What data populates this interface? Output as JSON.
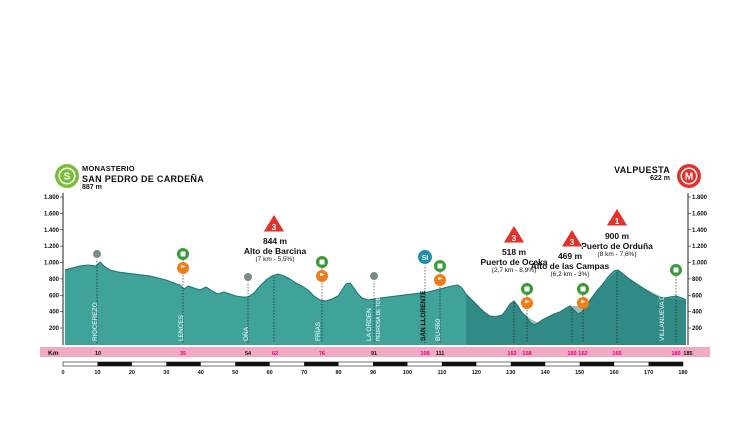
{
  "start": {
    "badge": "S",
    "line1": "MONASTERIO",
    "line2": "SAN PEDRO DE CARDEÑA",
    "alt": "887 m",
    "color": "#7bbd3a"
  },
  "finish": {
    "badge": "M",
    "line1": "VALPUESTA",
    "alt": "622 m",
    "color": "#e3322b"
  },
  "y_ticks": [
    "1.800",
    "1.600",
    "1.400",
    "1.200",
    "1.000",
    "800",
    "600",
    "400",
    "200"
  ],
  "km_label": "Km",
  "km_markers": [
    {
      "km": 10,
      "label": "10",
      "type": "plain"
    },
    {
      "km": 35,
      "label": "35",
      "type": "sprint"
    },
    {
      "km": 54,
      "label": "54",
      "type": "plain"
    },
    {
      "km": 62,
      "label": "62",
      "type": "climb"
    },
    {
      "km": 76,
      "label": "76",
      "type": "sprint"
    },
    {
      "km": 91,
      "label": "91",
      "type": "plain"
    },
    {
      "km": 108,
      "label": "108",
      "type": "bonus"
    },
    {
      "km": 111,
      "label": "111",
      "type": "plain"
    },
    {
      "km": 152,
      "label": "152",
      "type": "climb"
    },
    {
      "km": 158,
      "label": "158",
      "type": "sprint"
    },
    {
      "km": 170,
      "label": "150",
      "type": "climb"
    },
    {
      "km": 175,
      "label": "152",
      "type": "sprint"
    },
    {
      "km": 190,
      "label": "165",
      "type": "climb"
    },
    {
      "km": 205,
      "label": "180",
      "type": "sprint"
    },
    {
      "km": 208,
      "label": "185",
      "type": "end"
    }
  ],
  "scale_labels": [
    "0",
    "10",
    "20",
    "30",
    "40",
    "50",
    "60",
    "70",
    "80",
    "90",
    "100",
    "110",
    "120",
    "130",
    "140",
    "150",
    "160",
    "170",
    "180"
  ],
  "places": [
    "RIOCEREZO",
    "LENCES",
    "OÑA",
    "FRÍAS",
    "LA ORDEN",
    "PEDROSA DE TOBALINA",
    "SAN LLORENTE",
    "BU-550",
    "VILLANUEVA DE VALDEGOVIA"
  ],
  "climbs": [
    {
      "alt": "844 m",
      "name": "Alto de Barcina",
      "detail": "(7 km - 5,5%)",
      "cat": "3"
    },
    {
      "alt": "518 m",
      "name": "Puerto de Oceka",
      "detail": "(2,7 km - 8,9%)",
      "cat": "3"
    },
    {
      "alt": "469 m",
      "name": "Alto de las Campas",
      "detail": "(6,2 km - 3%)",
      "cat": "3"
    },
    {
      "alt": "900 m",
      "name": "Puerto de Orduña",
      "detail": "(8 km - 7,6%)",
      "cat": "1"
    }
  ],
  "bonus_badge": "SI",
  "colors": {
    "profile": "#3fa39a",
    "profile_dark": "#1f6f6e",
    "band": "#f2a9c4",
    "band_text": "#e3007a",
    "climb_red": "#e3322b",
    "feed_green": "#3b9a3a",
    "sprint_orange": "#f07d1a",
    "marker_gray": "#7a8c8a"
  }
}
